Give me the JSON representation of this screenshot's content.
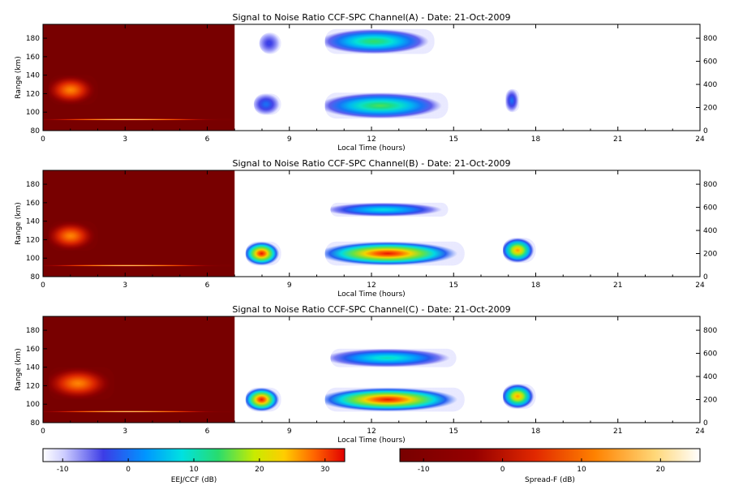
{
  "chart_data": [
    {
      "type": "heatmap",
      "title": "Signal to Noise Ratio CCF-SPC Channel(A) - Date: 21-Oct-2009",
      "xlabel": "Local Time (hours)",
      "ylabel": "Range (km)",
      "xlim": [
        0,
        24
      ],
      "ylim": [
        80,
        195
      ],
      "xticks": [
        0,
        3,
        6,
        9,
        12,
        15,
        18,
        21,
        24
      ],
      "yticks": [
        80,
        100,
        120,
        140,
        160,
        180
      ],
      "y2ticks": [
        0,
        200,
        400,
        600,
        800
      ],
      "background_region": {
        "x": [
          0,
          7.0
        ],
        "ylim": [
          80,
          195
        ],
        "colorbar": "Spread-F",
        "base_value_db": -13
      },
      "layers": [
        {
          "name": "spreadf_trace",
          "colorbar": "Spread-F",
          "x": [
            0,
            6.9
          ],
          "y": [
            91,
            93
          ],
          "peak_db": 22
        },
        {
          "name": "spreadf_wisp",
          "colorbar": "Spread-F",
          "x": [
            0.2,
            2.0
          ],
          "y": [
            108,
            140
          ],
          "peak_db": 12
        },
        {
          "name": "upper_echo",
          "colorbar": "EEJ/CCF",
          "x": [
            10.3,
            14.3
          ],
          "y": [
            163,
            190
          ],
          "peak_db": 14
        },
        {
          "name": "lower_echo",
          "colorbar": "EEJ/CCF",
          "x": [
            10.3,
            14.8
          ],
          "y": [
            93,
            121
          ],
          "peak_db": 15
        },
        {
          "name": "early_upper",
          "colorbar": "EEJ/CCF",
          "x": [
            7.9,
            8.7
          ],
          "y": [
            163,
            186
          ],
          "peak_db": -3
        },
        {
          "name": "early_lower",
          "colorbar": "EEJ/CCF",
          "x": [
            7.7,
            8.7
          ],
          "y": [
            97,
            120
          ],
          "peak_db": 0
        },
        {
          "name": "late_patch",
          "colorbar": "EEJ/CCF",
          "x": [
            16.9,
            17.4
          ],
          "y": [
            100,
            125
          ],
          "peak_db": 0
        }
      ]
    },
    {
      "type": "heatmap",
      "title": "Signal to Noise Ratio CCF-SPC Channel(B) - Date: 21-Oct-2009",
      "xlabel": "Local Time (hours)",
      "ylabel": "Range (km)",
      "xlim": [
        0,
        24
      ],
      "ylim": [
        80,
        195
      ],
      "xticks": [
        0,
        3,
        6,
        9,
        12,
        15,
        18,
        21,
        24
      ],
      "yticks": [
        80,
        100,
        120,
        140,
        160,
        180
      ],
      "y2ticks": [
        0,
        200,
        400,
        600,
        800
      ],
      "background_region": {
        "x": [
          0,
          7.0
        ],
        "ylim": [
          80,
          195
        ],
        "colorbar": "Spread-F",
        "base_value_db": -13
      },
      "layers": [
        {
          "name": "spreadf_trace",
          "colorbar": "Spread-F",
          "x": [
            0,
            6.9
          ],
          "y": [
            91,
            93
          ],
          "peak_db": 22
        },
        {
          "name": "spreadf_wisp",
          "colorbar": "Spread-F",
          "x": [
            0.2,
            2.0
          ],
          "y": [
            108,
            140
          ],
          "peak_db": 12
        },
        {
          "name": "eej_band",
          "colorbar": "EEJ/CCF",
          "x": [
            10.3,
            15.4
          ],
          "y": [
            92,
            118
          ],
          "peak_db": 32
        },
        {
          "name": "eej_early",
          "colorbar": "EEJ/CCF",
          "x": [
            7.4,
            8.7
          ],
          "y": [
            92,
            118
          ],
          "peak_db": 32
        },
        {
          "name": "upper_band",
          "colorbar": "EEJ/CCF",
          "x": [
            10.5,
            14.8
          ],
          "y": [
            145,
            160
          ],
          "peak_db": 8
        },
        {
          "name": "late_band",
          "colorbar": "EEJ/CCF",
          "x": [
            16.8,
            18.0
          ],
          "y": [
            95,
            122
          ],
          "peak_db": 26
        }
      ]
    },
    {
      "type": "heatmap",
      "title": "Signal to Noise Ratio CCF-SPC Channel(C) - Date: 21-Oct-2009",
      "xlabel": "Local Time (hours)",
      "ylabel": "Range (km)",
      "xlim": [
        0,
        24
      ],
      "ylim": [
        80,
        195
      ],
      "xticks": [
        0,
        3,
        6,
        9,
        12,
        15,
        18,
        21,
        24
      ],
      "yticks": [
        80,
        100,
        120,
        140,
        160,
        180
      ],
      "y2ticks": [
        0,
        200,
        400,
        600,
        800
      ],
      "background_region": {
        "x": [
          0,
          7.0
        ],
        "ylim": [
          80,
          195
        ],
        "colorbar": "Spread-F",
        "base_value_db": -13
      },
      "layers": [
        {
          "name": "spreadf_trace",
          "colorbar": "Spread-F",
          "x": [
            0,
            6.9
          ],
          "y": [
            91,
            93
          ],
          "peak_db": 22
        },
        {
          "name": "spreadf_wisp",
          "colorbar": "Spread-F",
          "x": [
            0.2,
            2.6
          ],
          "y": [
            105,
            140
          ],
          "peak_db": 12
        },
        {
          "name": "eej_band",
          "colorbar": "EEJ/CCF",
          "x": [
            10.3,
            15.4
          ],
          "y": [
            92,
            118
          ],
          "peak_db": 32
        },
        {
          "name": "eej_early",
          "colorbar": "EEJ/CCF",
          "x": [
            7.4,
            8.7
          ],
          "y": [
            92,
            118
          ],
          "peak_db": 32
        },
        {
          "name": "upper_band",
          "colorbar": "EEJ/CCF",
          "x": [
            10.5,
            15.1
          ],
          "y": [
            140,
            160
          ],
          "peak_db": 10
        },
        {
          "name": "late_band",
          "colorbar": "EEJ/CCF",
          "x": [
            16.8,
            18.0
          ],
          "y": [
            95,
            122
          ],
          "peak_db": 26
        }
      ]
    }
  ],
  "colorbars": [
    {
      "label": "EEJ/CCF (dB)",
      "range": [
        -13,
        33
      ],
      "ticks": [
        -10,
        0,
        10,
        20,
        30
      ],
      "colormap": "white-blue-cyan-green-yellow-red"
    },
    {
      "label": "Spread-F (dB)",
      "range": [
        -13,
        25
      ],
      "ticks": [
        -10,
        0,
        10,
        20
      ],
      "colormap": "darkred-red-orange-yellow-white"
    }
  ]
}
